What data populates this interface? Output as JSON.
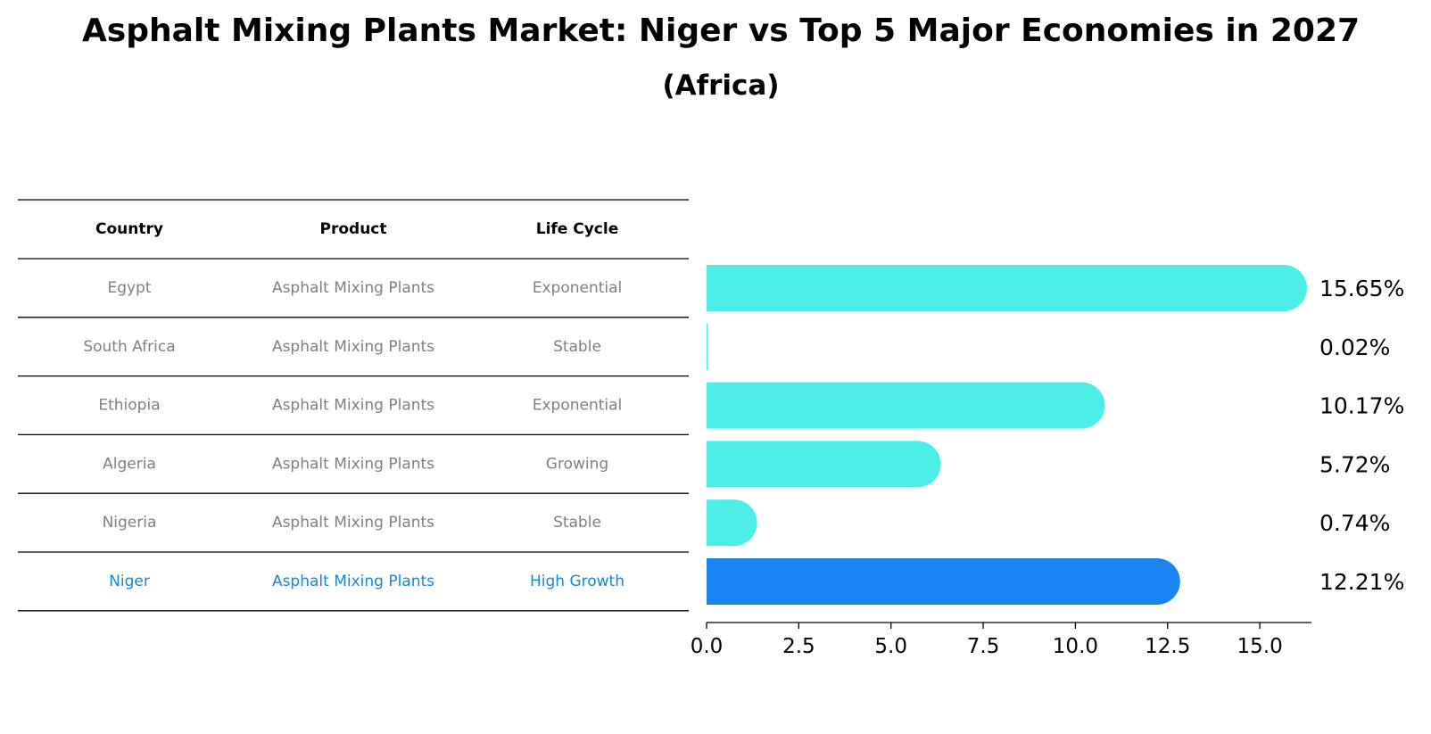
{
  "chart_data": {
    "type": "bar",
    "orientation": "horizontal",
    "title": "Asphalt Mixing Plants Market: Niger vs Top 5 Major Economies in 2027",
    "subtitle": "(Africa)",
    "table": {
      "columns": [
        "Country",
        "Product",
        "Life Cycle"
      ],
      "rows": [
        {
          "country": "Egypt",
          "product": "Asphalt Mixing Plants",
          "life_cycle": "Exponential"
        },
        {
          "country": "South Africa",
          "product": "Asphalt Mixing Plants",
          "life_cycle": "Stable"
        },
        {
          "country": "Ethiopia",
          "product": "Asphalt Mixing Plants",
          "life_cycle": "Exponential"
        },
        {
          "country": "Algeria",
          "product": "Asphalt Mixing Plants",
          "life_cycle": "Growing"
        },
        {
          "country": "Nigeria",
          "product": "Asphalt Mixing Plants",
          "life_cycle": "Stable"
        },
        {
          "country": "Niger",
          "product": "Asphalt Mixing Plants",
          "life_cycle": "High Growth"
        }
      ]
    },
    "categories": [
      "Egypt",
      "South Africa",
      "Ethiopia",
      "Algeria",
      "Nigeria",
      "Niger"
    ],
    "values": [
      15.65,
      0.02,
      10.17,
      5.72,
      0.74,
      12.21
    ],
    "value_labels": [
      "15.65%",
      "0.02%",
      "10.17%",
      "5.72%",
      "0.74%",
      "12.21%"
    ],
    "highlight_category": "Niger",
    "xlim": [
      0,
      16.4
    ],
    "xticks": [
      0.0,
      2.5,
      5.0,
      7.5,
      10.0,
      12.5,
      15.0
    ],
    "xtick_labels": [
      "0.0",
      "2.5",
      "5.0",
      "7.5",
      "10.0",
      "12.5",
      "15.0"
    ],
    "xlabel": "",
    "ylabel": "",
    "grid": false,
    "colors": {
      "bar": "#4dede8",
      "highlight_bar": "#1a85f0",
      "table_text": "#808080",
      "highlight_text": "#1a85d6"
    }
  }
}
